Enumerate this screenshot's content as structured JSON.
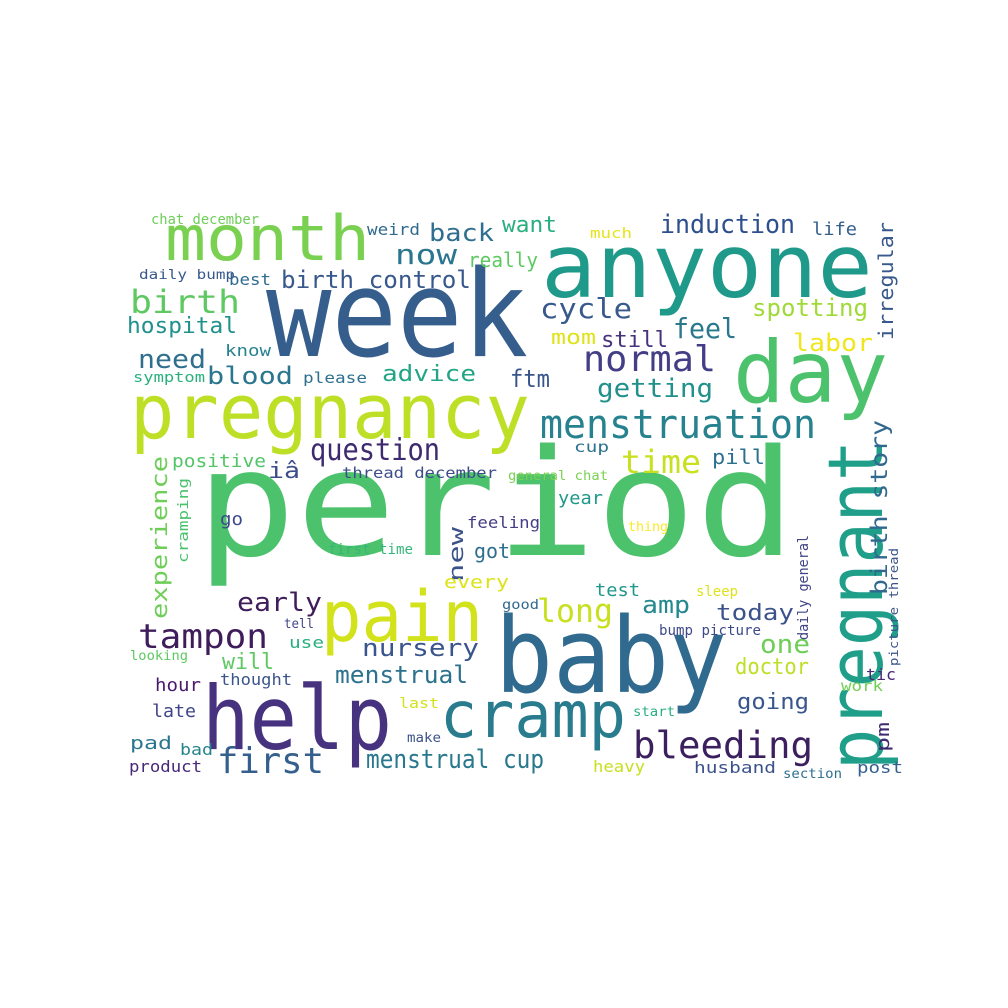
{
  "words": [
    {
      "text": "period",
      "color": "#4cc26c"
    },
    {
      "text": "week",
      "color": "#355e8d"
    },
    {
      "text": "anyone",
      "color": "#1f9a8a"
    },
    {
      "text": "day",
      "color": "#4cc26c"
    },
    {
      "text": "pregnancy",
      "color": "#bddf26"
    },
    {
      "text": "baby",
      "color": "#306a8e"
    },
    {
      "text": "month",
      "color": "#7ad151"
    },
    {
      "text": "pregnant",
      "color": "#1f9e89"
    },
    {
      "text": "help",
      "color": "#46327e"
    },
    {
      "text": "pain",
      "color": "#d2e21b"
    },
    {
      "text": "cramp",
      "color": "#287c8e"
    },
    {
      "text": "menstruation",
      "color": "#26828e"
    },
    {
      "text": "bleeding",
      "color": "#3b1f5e"
    },
    {
      "text": "tampon",
      "color": "#3f1c5a"
    },
    {
      "text": "normal",
      "color": "#433e85"
    },
    {
      "text": "first",
      "color": "#355f8d"
    },
    {
      "text": "birth",
      "color": "#5ec962"
    },
    {
      "text": "question",
      "color": "#3e2a6f"
    },
    {
      "text": "menstrual cup",
      "color": "#2a788e"
    },
    {
      "text": "induction",
      "color": "#2d4f8e"
    },
    {
      "text": "time",
      "color": "#c8e020"
    },
    {
      "text": "long",
      "color": "#c8e020"
    },
    {
      "text": "birth story",
      "color": "#31688e"
    },
    {
      "text": "experience",
      "color": "#6ece58"
    },
    {
      "text": "cycle",
      "color": "#38598c"
    },
    {
      "text": "getting",
      "color": "#21918c"
    },
    {
      "text": "now",
      "color": "#2a768e"
    },
    {
      "text": "birth control",
      "color": "#38588c"
    },
    {
      "text": "back",
      "color": "#2e6e8e"
    },
    {
      "text": "menstrual",
      "color": "#2c718e"
    },
    {
      "text": "nursery",
      "color": "#3a548c"
    },
    {
      "text": "feel",
      "color": "#2a788e"
    },
    {
      "text": "spotting",
      "color": "#a0da39"
    },
    {
      "text": "labor",
      "color": "#f1e51d"
    },
    {
      "text": "early",
      "color": "#3f1c5a"
    },
    {
      "text": "today",
      "color": "#3b528b"
    },
    {
      "text": "need",
      "color": "#2e6e8e"
    },
    {
      "text": "blood",
      "color": "#2a768e"
    },
    {
      "text": "advice",
      "color": "#21a585"
    },
    {
      "text": "ftm",
      "color": "#39568c"
    },
    {
      "text": "amp",
      "color": "#23898e"
    },
    {
      "text": "one",
      "color": "#6ece58"
    },
    {
      "text": "irregular",
      "color": "#38598c"
    },
    {
      "text": "hospital",
      "color": "#21918c"
    },
    {
      "text": "want",
      "color": "#29af7f"
    },
    {
      "text": "doctor",
      "color": "#bddf26"
    },
    {
      "text": "new",
      "color": "#3b528b"
    },
    {
      "text": "going",
      "color": "#39568c"
    },
    {
      "text": "will",
      "color": "#5ec962"
    },
    {
      "text": "mom",
      "color": "#dde318"
    },
    {
      "text": "still",
      "color": "#46327e"
    },
    {
      "text": "pm",
      "color": "#3e2a6f"
    },
    {
      "text": "positive",
      "color": "#52c569"
    },
    {
      "text": "iâ",
      "color": "#3d4d8a"
    },
    {
      "text": "pill",
      "color": "#2d708e"
    },
    {
      "text": "really",
      "color": "#5ec962"
    },
    {
      "text": "life",
      "color": "#355f8d"
    },
    {
      "text": "weird",
      "color": "#306a8e"
    },
    {
      "text": "know",
      "color": "#26828e"
    },
    {
      "text": "got",
      "color": "#2e6e8e"
    },
    {
      "text": "feeling",
      "color": "#433e85"
    },
    {
      "text": "year",
      "color": "#1f988b"
    },
    {
      "text": "every",
      "color": "#dde318"
    },
    {
      "text": "test",
      "color": "#1f988b"
    },
    {
      "text": "hour",
      "color": "#481a6c"
    },
    {
      "text": "late",
      "color": "#414487"
    },
    {
      "text": "thought",
      "color": "#3a548c"
    },
    {
      "text": "pad",
      "color": "#2a768e"
    },
    {
      "text": "bad",
      "color": "#25838e"
    },
    {
      "text": "product",
      "color": "#482878"
    },
    {
      "text": "husband",
      "color": "#3b528b"
    },
    {
      "text": "post",
      "color": "#355f8d"
    },
    {
      "text": "use",
      "color": "#29af7f"
    },
    {
      "text": "go",
      "color": "#3e4989"
    },
    {
      "text": "heavy",
      "color": "#c8e020"
    },
    {
      "text": "cramping",
      "color": "#4ac16d"
    },
    {
      "text": "much",
      "color": "#e5e419"
    },
    {
      "text": "best",
      "color": "#306a8e"
    },
    {
      "text": "please",
      "color": "#2d708e"
    },
    {
      "text": "symptom",
      "color": "#2ab07f"
    },
    {
      "text": "work",
      "color": "#73d056"
    },
    {
      "text": "thread december",
      "color": "#3d4d8a"
    },
    {
      "text": "first time",
      "color": "#35b779"
    },
    {
      "text": "daily general",
      "color": "#414487"
    },
    {
      "text": "tic",
      "color": "#482878"
    },
    {
      "text": "last",
      "color": "#d2e21b"
    },
    {
      "text": "chat december",
      "color": "#6ece58"
    },
    {
      "text": "daily bump",
      "color": "#38598c"
    },
    {
      "text": "general chat",
      "color": "#7ad151"
    },
    {
      "text": "bump picture",
      "color": "#3e4989"
    },
    {
      "text": "picture thread",
      "color": "#3b528b"
    },
    {
      "text": "thing",
      "color": "#fde725"
    },
    {
      "text": "sleep",
      "color": "#dde318"
    },
    {
      "text": "cup",
      "color": "#2c718e"
    },
    {
      "text": "good",
      "color": "#31688e"
    },
    {
      "text": "tell",
      "color": "#404588"
    },
    {
      "text": "looking",
      "color": "#5ec962"
    },
    {
      "text": "start",
      "color": "#2ab07f"
    },
    {
      "text": "make",
      "color": "#3b528b"
    },
    {
      "text": "section",
      "color": "#2d708e"
    }
  ]
}
